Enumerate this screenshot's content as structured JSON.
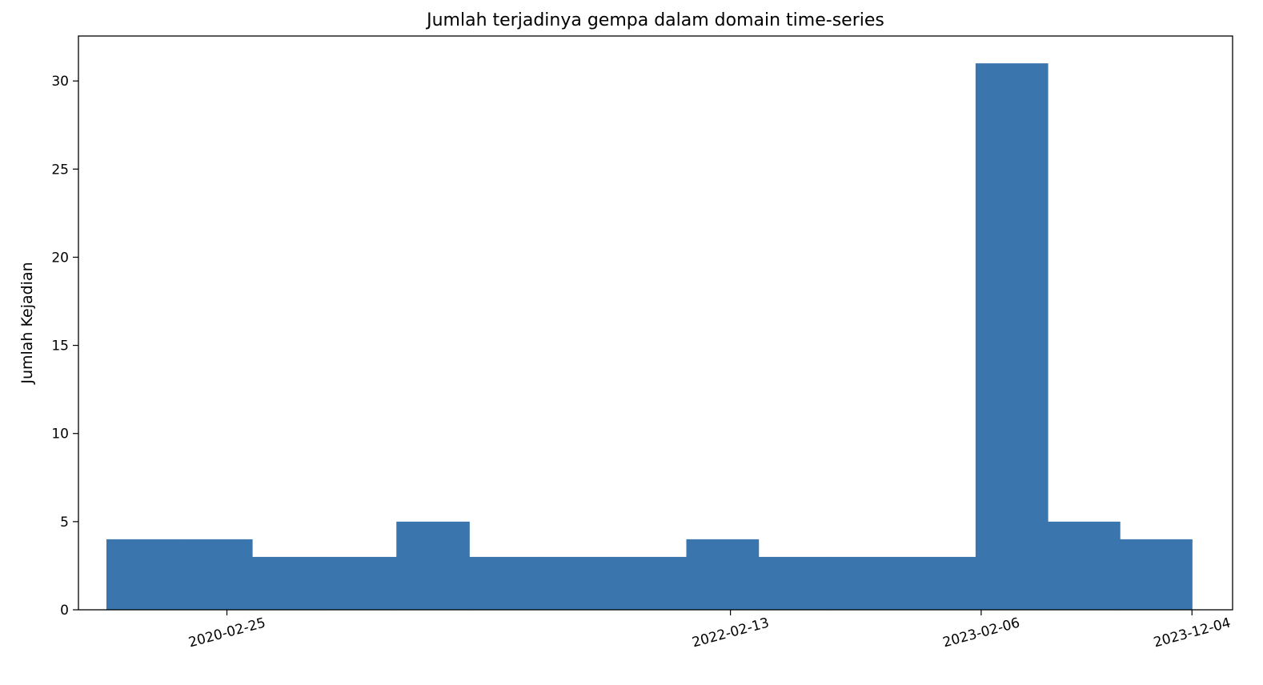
{
  "chart_data": {
    "type": "bar",
    "title": "Jumlah terjadinya gempa dalam domain time-series",
    "xlabel": "",
    "ylabel": "Jumlah Kejadian",
    "x_axis": "date",
    "xlim": [
      "2019-07-28",
      "2024-01-31"
    ],
    "ylim": [
      0,
      32.55
    ],
    "grid": false,
    "legend": "none",
    "color": "#3a75ae",
    "y_ticks": [
      0,
      5,
      10,
      15,
      20,
      25,
      30
    ],
    "x_ticks": [
      "2020-02-25",
      "2022-02-13",
      "2023-02-06",
      "2023-12-04"
    ],
    "bin_edges": [
      "2019-09-06",
      "2019-12-19",
      "2020-04-01",
      "2020-07-13",
      "2020-10-24",
      "2021-02-05",
      "2021-05-19",
      "2021-08-30",
      "2021-12-12",
      "2022-03-25",
      "2022-07-06",
      "2022-10-17",
      "2023-01-29",
      "2023-05-12",
      "2023-08-23",
      "2023-12-04"
    ],
    "bin_edges_shown": true,
    "bins": [
      {
        "start": "2019-09-06",
        "end": "2019-12-19",
        "count": 4
      },
      {
        "start": "2019-12-19",
        "end": "2020-04-01",
        "count": 4
      },
      {
        "start": "2020-04-01",
        "end": "2020-07-13",
        "count": 3
      },
      {
        "start": "2020-07-13",
        "end": "2020-10-24",
        "count": 3
      },
      {
        "start": "2020-10-24",
        "end": "2021-02-05",
        "count": 5
      },
      {
        "start": "2021-02-05",
        "end": "2021-05-19",
        "count": 3
      },
      {
        "start": "2021-05-19",
        "end": "2021-08-30",
        "count": 3
      },
      {
        "start": "2021-08-30",
        "end": "2021-12-12",
        "count": 3
      },
      {
        "start": "2021-12-12",
        "end": "2022-03-25",
        "count": 4
      },
      {
        "start": "2022-03-25",
        "end": "2022-07-06",
        "count": 3
      },
      {
        "start": "2022-07-06",
        "end": "2022-10-17",
        "count": 3
      },
      {
        "start": "2022-10-17",
        "end": "2023-01-29",
        "count": 3
      },
      {
        "start": "2023-01-29",
        "end": "2023-05-12",
        "count": 31
      },
      {
        "start": "2023-05-12",
        "end": "2023-08-23",
        "count": 5
      },
      {
        "start": "2023-08-23",
        "end": "2023-12-04",
        "count": 4
      }
    ]
  }
}
